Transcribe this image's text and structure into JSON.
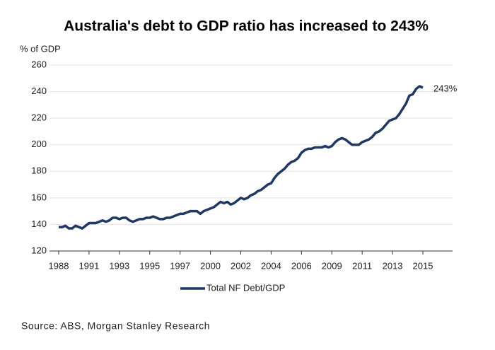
{
  "chart_data": {
    "type": "line",
    "title": "Australia's debt to GDP ratio has increased to 243%",
    "y_label": "% of GDP",
    "annotation": "243%",
    "source": "Source: ABS, Morgan Stanley Research",
    "categories": [
      "1988",
      null,
      null,
      null,
      null,
      null,
      null,
      null,
      null,
      "1991",
      null,
      null,
      null,
      null,
      null,
      null,
      null,
      null,
      "1993",
      null,
      null,
      null,
      null,
      null,
      null,
      null,
      null,
      "1995",
      null,
      null,
      null,
      null,
      null,
      null,
      null,
      null,
      "1997",
      null,
      null,
      null,
      null,
      null,
      null,
      null,
      null,
      "2000",
      null,
      null,
      null,
      null,
      null,
      null,
      null,
      null,
      "2002",
      null,
      null,
      null,
      null,
      null,
      null,
      null,
      null,
      "2004",
      null,
      null,
      null,
      null,
      null,
      null,
      null,
      null,
      "2006",
      null,
      null,
      null,
      null,
      null,
      null,
      null,
      null,
      "2009",
      null,
      null,
      null,
      null,
      null,
      null,
      null,
      null,
      "2011",
      null,
      null,
      null,
      null,
      null,
      null,
      null,
      null,
      "2013",
      null,
      null,
      null,
      null,
      null,
      null,
      null,
      null,
      "2015"
    ],
    "series": [
      {
        "name": "Total NF Debt/GDP",
        "color": "#1f3864",
        "values": [
          138,
          138,
          139,
          137,
          137,
          139,
          138,
          137,
          139,
          141,
          141,
          141,
          142,
          143,
          142,
          143,
          145,
          145,
          144,
          145,
          145,
          143,
          142,
          143,
          144,
          144,
          145,
          145,
          146,
          145,
          144,
          144,
          145,
          145,
          146,
          147,
          148,
          148,
          149,
          150,
          150,
          150,
          148,
          150,
          151,
          152,
          153,
          155,
          157,
          156,
          157,
          155,
          156,
          158,
          160,
          159,
          160,
          162,
          163,
          165,
          166,
          168,
          170,
          171,
          175,
          178,
          180,
          182,
          185,
          187,
          188,
          190,
          194,
          196,
          197,
          197,
          198,
          198,
          198,
          199,
          198,
          199,
          202,
          204,
          205,
          204,
          202,
          200,
          200,
          200,
          202,
          203,
          204,
          206,
          209,
          210,
          212,
          215,
          218,
          219,
          220,
          223,
          227,
          231,
          237,
          238,
          242,
          244,
          243
        ]
      }
    ],
    "ylim": [
      120,
      260
    ],
    "yticks": [
      120,
      140,
      160,
      180,
      200,
      220,
      240,
      260
    ],
    "grid": true
  }
}
